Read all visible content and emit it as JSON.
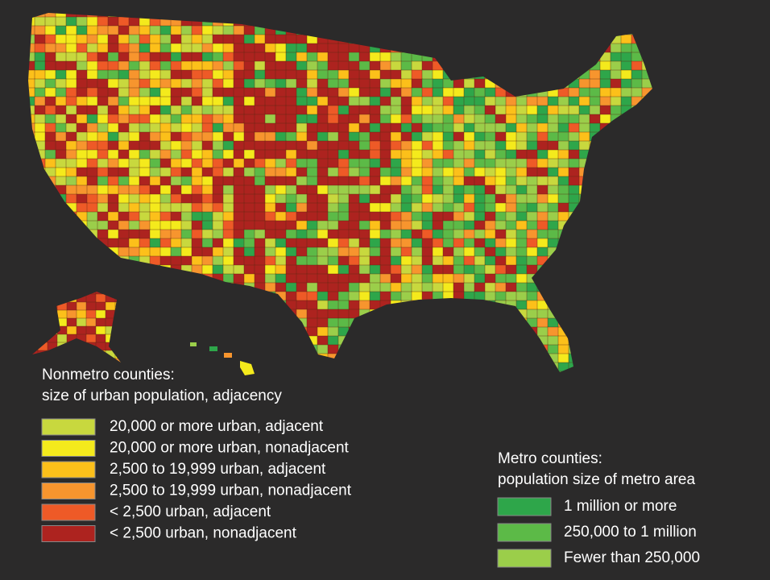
{
  "nonmetro_legend": {
    "title": [
      "Nonmetro counties:",
      "size of urban population, adjacency"
    ],
    "items": [
      {
        "label": "20,000 or more urban, adjacent",
        "color": "#c8d83e"
      },
      {
        "label": "20,000 or more urban, nonadjacent",
        "color": "#f4ea1c"
      },
      {
        "label": "2,500 to 19,999 urban, adjacent",
        "color": "#fcc01a"
      },
      {
        "label": "2,500 to 19,999 urban, nonadjacent",
        "color": "#f7952e"
      },
      {
        "label": "< 2,500 urban, adjacent",
        "color": "#ee5a27"
      },
      {
        "label": "< 2,500 urban, nonadjacent",
        "color": "#ad231f"
      }
    ]
  },
  "metro_legend": {
    "title": [
      "Metro counties:",
      "population size of metro area"
    ],
    "items": [
      {
        "label": "1 million or more",
        "color": "#2ea64a"
      },
      {
        "label": "250,000 to 1 million",
        "color": "#5cba47"
      },
      {
        "label": "Fewer than 250,000",
        "color": "#9bce4a"
      }
    ]
  }
}
